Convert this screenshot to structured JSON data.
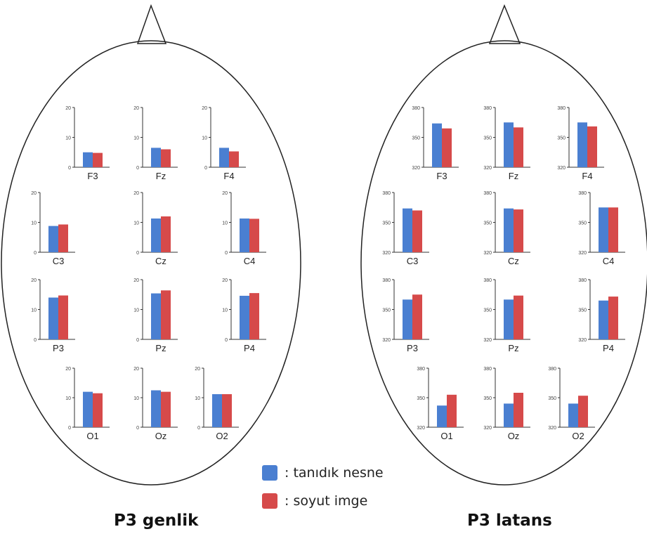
{
  "colors": {
    "familiar": "#4a7fd1",
    "abstract": "#d64a4a",
    "outline": "#222222"
  },
  "legend": {
    "familiar_label": ": tanıdık nesne",
    "abstract_label": ": soyut imge"
  },
  "chart_data": [
    {
      "type": "bar",
      "title": "P3 genlik",
      "series": [
        {
          "name": ": tanıdık nesne",
          "key": "familiar"
        },
        {
          "name": ": soyut imge",
          "key": "abstract"
        }
      ],
      "ylim": [
        0,
        20
      ],
      "yticks": [
        "0",
        "10",
        "20"
      ],
      "electrodes": [
        {
          "label": "F3",
          "values": [
            5,
            4.8
          ]
        },
        {
          "label": "Fz",
          "values": [
            6.5,
            6
          ]
        },
        {
          "label": "F4",
          "values": [
            6.5,
            5.3
          ]
        },
        {
          "label": "C3",
          "values": [
            8.8,
            9.3
          ]
        },
        {
          "label": "Cz",
          "values": [
            11.3,
            12
          ]
        },
        {
          "label": "C4",
          "values": [
            11.3,
            11.2
          ]
        },
        {
          "label": "P3",
          "values": [
            14,
            14.7
          ]
        },
        {
          "label": "Pz",
          "values": [
            15.4,
            16.4
          ]
        },
        {
          "label": "P4",
          "values": [
            14.6,
            15.5
          ]
        },
        {
          "label": "O1",
          "values": [
            12,
            11.5
          ]
        },
        {
          "label": "Oz",
          "values": [
            12.5,
            12
          ]
        },
        {
          "label": "O2",
          "values": [
            11.2,
            11.2
          ]
        }
      ]
    },
    {
      "type": "bar",
      "title": "P3 latans",
      "series": [
        {
          "name": ": tanıdık nesne",
          "key": "familiar"
        },
        {
          "name": ": soyut imge",
          "key": "abstract"
        }
      ],
      "ylim": [
        320,
        380
      ],
      "yticks": [
        "320",
        "350",
        "380"
      ],
      "electrodes": [
        {
          "label": "F3",
          "values": [
            364,
            359
          ]
        },
        {
          "label": "Fz",
          "values": [
            365,
            360
          ]
        },
        {
          "label": "F4",
          "values": [
            365,
            361
          ]
        },
        {
          "label": "C3",
          "values": [
            364,
            362
          ]
        },
        {
          "label": "Cz",
          "values": [
            364,
            363
          ]
        },
        {
          "label": "C4",
          "values": [
            365,
            365
          ]
        },
        {
          "label": "P3",
          "values": [
            360,
            365
          ]
        },
        {
          "label": "Pz",
          "values": [
            360,
            364
          ]
        },
        {
          "label": "P4",
          "values": [
            359,
            363
          ]
        },
        {
          "label": "O1",
          "values": [
            342,
            353
          ]
        },
        {
          "label": "Oz",
          "values": [
            344,
            355
          ]
        },
        {
          "label": "O2",
          "values": [
            344,
            352
          ]
        }
      ]
    }
  ]
}
